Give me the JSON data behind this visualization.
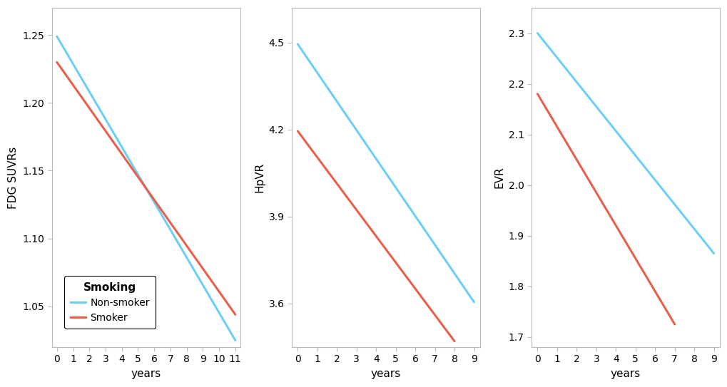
{
  "panel1": {
    "ylabel": "FDG SUVRs",
    "xlabel": "years",
    "xlim": [
      -0.3,
      11.3
    ],
    "xticks": [
      0,
      1,
      2,
      3,
      4,
      5,
      6,
      7,
      8,
      9,
      10,
      11
    ],
    "ylim": [
      1.02,
      1.27
    ],
    "yticks": [
      1.05,
      1.1,
      1.15,
      1.2,
      1.25
    ],
    "non_smoker": {
      "x": [
        0,
        11
      ],
      "y": [
        1.249,
        1.025
      ]
    },
    "smoker": {
      "x": [
        0,
        11
      ],
      "y": [
        1.23,
        1.044
      ]
    }
  },
  "panel2": {
    "ylabel": "HpVR",
    "xlabel": "years",
    "xlim": [
      -0.3,
      9.3
    ],
    "xticks": [
      0,
      1,
      2,
      3,
      4,
      5,
      6,
      7,
      8,
      9
    ],
    "ylim": [
      3.45,
      4.62
    ],
    "yticks": [
      3.6,
      3.9,
      4.2,
      4.5
    ],
    "non_smoker": {
      "x": [
        0,
        9
      ],
      "y": [
        4.495,
        3.605
      ]
    },
    "smoker": {
      "x": [
        0,
        8
      ],
      "y": [
        4.195,
        3.47
      ]
    }
  },
  "panel3": {
    "ylabel": "EVR",
    "xlabel": "years",
    "xlim": [
      -0.3,
      9.3
    ],
    "xticks": [
      0,
      1,
      2,
      3,
      4,
      5,
      6,
      7,
      8,
      9
    ],
    "ylim": [
      1.68,
      2.35
    ],
    "yticks": [
      1.7,
      1.8,
      1.9,
      2.0,
      2.1,
      2.2,
      2.3
    ],
    "non_smoker": {
      "x": [
        0,
        9
      ],
      "y": [
        2.3,
        1.865
      ]
    },
    "smoker": {
      "x": [
        0,
        7
      ],
      "y": [
        2.18,
        1.725
      ]
    }
  },
  "non_smoker_color": "#6DCFF6",
  "smoker_color": "#E8604C",
  "line_width": 2.2,
  "legend_title": "Smoking",
  "legend_non_smoker": "Non-smoker",
  "legend_smoker": "Smoker",
  "background_color": "#FFFFFF",
  "panel_bg": "#FFFFFF",
  "spine_color": "#BBBBBB",
  "font_size": 11,
  "tick_labelsize": 10
}
